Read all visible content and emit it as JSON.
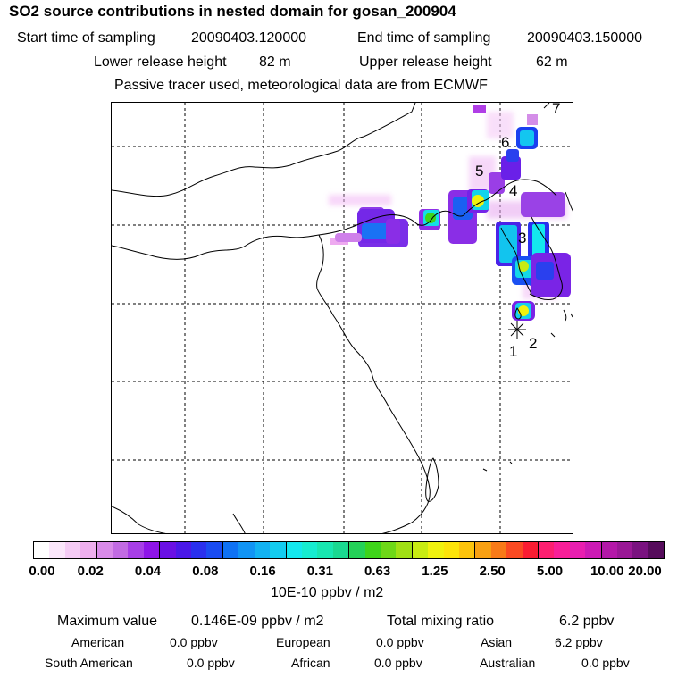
{
  "title": "SO2 source contributions in nested domain for gosan_200904",
  "sampling": {
    "start_label": "Start time of sampling",
    "start_value": "20090403.120000",
    "end_label": "End time of sampling",
    "end_value": "20090403.150000"
  },
  "release": {
    "lower_label": "Lower release height",
    "lower_value": "82 m",
    "upper_label": "Upper release height",
    "upper_value": "62 m"
  },
  "note": "Passive tracer used, meteorological data are from ECMWF",
  "map": {
    "markers": [
      {
        "label": "1",
        "kind": "receptor"
      },
      {
        "label": "2"
      },
      {
        "label": "3"
      },
      {
        "label": "4"
      },
      {
        "label": "5"
      },
      {
        "label": "6"
      },
      {
        "label": "7"
      }
    ]
  },
  "colorbar": {
    "colors": [
      "#ffffff",
      "#fbe6fb",
      "#f5cbf5",
      "#eeafee",
      "#d98be9",
      "#c26be3",
      "#a73ee6",
      "#8e14e8",
      "#6a10e4",
      "#4a18e8",
      "#2a30ee",
      "#1a4cf2",
      "#0f72f4",
      "#1194f4",
      "#12b2f2",
      "#13ccf0",
      "#14e8ee",
      "#16ecd0",
      "#18e6b0",
      "#1ad890",
      "#25d258",
      "#3ed41a",
      "#6ed818",
      "#a0e015",
      "#c8ec12",
      "#f0f20e",
      "#fce40a",
      "#fcc40c",
      "#f8a012",
      "#f87a18",
      "#fa4a22",
      "#fa1c32",
      "#fc1e70",
      "#f81e98",
      "#e81eb0",
      "#cc1ab4",
      "#b418a8",
      "#9a1896",
      "#7a1280",
      "#560c5c"
    ],
    "ticks": [
      "0.00",
      "0.02",
      "0.04",
      "0.08",
      "0.16",
      "0.31",
      "0.63",
      "1.25",
      "2.50",
      "5.00",
      "10.00",
      "20.00"
    ],
    "unit": "10E-10 ppbv / m2"
  },
  "stats": {
    "max_label": "Maximum value",
    "max_value": "0.146E-09 ppbv / m2",
    "total_label": "Total mixing ratio",
    "total_value": "6.2 ppbv"
  },
  "sources": [
    {
      "name": "American",
      "value": "0.0 ppbv"
    },
    {
      "name": "European",
      "value": "0.0 ppbv"
    },
    {
      "name": "Asian",
      "value": "6.2 ppbv"
    },
    {
      "name": "South American",
      "value": "0.0 ppbv"
    },
    {
      "name": "African",
      "value": "0.0 ppbv"
    },
    {
      "name": "Australian",
      "value": "0.0 ppbv"
    }
  ]
}
